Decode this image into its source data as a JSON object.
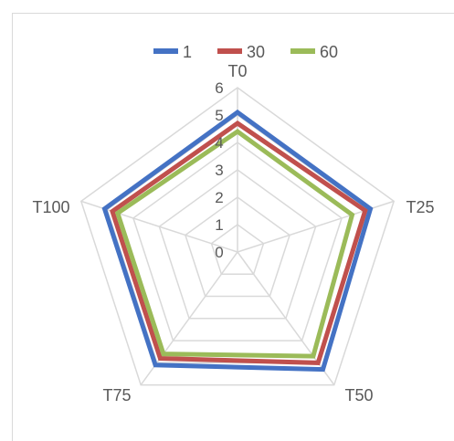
{
  "chart_data": {
    "type": "radar",
    "categories": [
      "T0",
      "T25",
      "T50",
      "T75",
      "T100"
    ],
    "series": [
      {
        "name": "1",
        "values": [
          5.1,
          5.1,
          5.3,
          5.1,
          5.1
        ],
        "color": "#4472C4"
      },
      {
        "name": "30",
        "values": [
          4.7,
          4.9,
          5.0,
          4.8,
          4.8
        ],
        "color": "#C0504D"
      },
      {
        "name": "60",
        "values": [
          4.4,
          4.4,
          4.7,
          4.6,
          4.6
        ],
        "color": "#9BBB59"
      }
    ],
    "rlim": [
      0,
      6
    ],
    "ticks": [
      "0",
      "1",
      "2",
      "3",
      "4",
      "5",
      "6"
    ],
    "legend_position": "top",
    "grid": true,
    "grid_color": "#d9d9d9"
  }
}
